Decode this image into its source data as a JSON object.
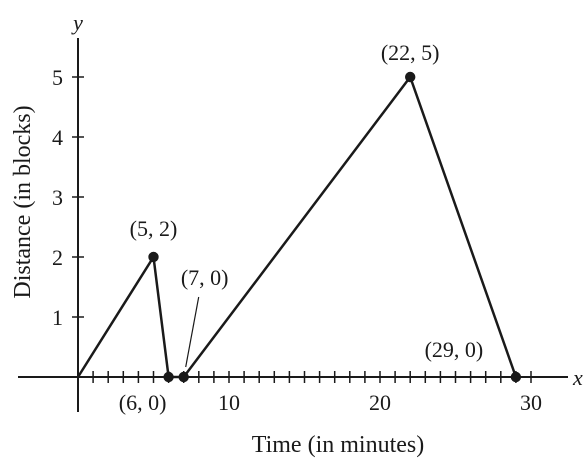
{
  "chart_data": {
    "type": "line",
    "xlabel": "Time (in minutes)",
    "ylabel": "Distance (in blocks)",
    "x_axis_var": "x",
    "y_axis_var": "y",
    "xlim": [
      -0.5,
      30
    ],
    "ylim": [
      0,
      5
    ],
    "x_ticks_minor": [
      1,
      2,
      3,
      4,
      5,
      6,
      7,
      8,
      9,
      10,
      11,
      12,
      13,
      14,
      15,
      16,
      17,
      18,
      19,
      20,
      21,
      22,
      23,
      24,
      25,
      26,
      27,
      28,
      29,
      30
    ],
    "x_tick_labels": [
      {
        "value": 10,
        "label": "10"
      },
      {
        "value": 20,
        "label": "20"
      },
      {
        "value": 30,
        "label": "30"
      }
    ],
    "y_tick_labels": [
      {
        "value": 1,
        "label": "1"
      },
      {
        "value": 2,
        "label": "2"
      },
      {
        "value": 3,
        "label": "3"
      },
      {
        "value": 4,
        "label": "4"
      },
      {
        "value": 5,
        "label": "5"
      }
    ],
    "grid": false,
    "series": [
      {
        "x": [
          0,
          5,
          6,
          7,
          22,
          29
        ],
        "y": [
          0,
          2,
          0,
          0,
          5,
          0
        ]
      }
    ],
    "points": [
      {
        "x": 5,
        "y": 2,
        "label": "(5, 2)"
      },
      {
        "x": 6,
        "y": 0,
        "label": "(6, 0)"
      },
      {
        "x": 7,
        "y": 0,
        "label": "(7, 0)"
      },
      {
        "x": 22,
        "y": 5,
        "label": "(22, 5)"
      },
      {
        "x": 29,
        "y": 0,
        "label": "(29, 0)"
      }
    ],
    "line_color": "#1a1a1a"
  }
}
